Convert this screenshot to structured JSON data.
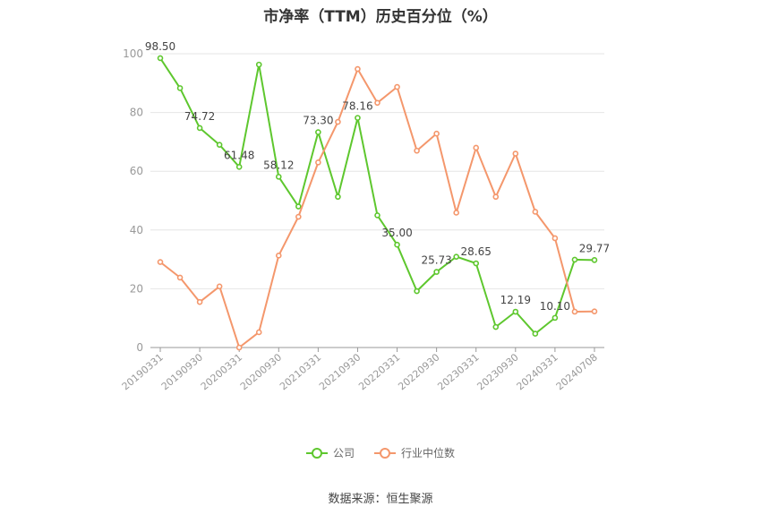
{
  "chart_data": {
    "type": "line",
    "title": "市净率（TTM）历史百分位（%）",
    "x": [
      "20190331",
      "20190630",
      "20190930",
      "20191231",
      "20200331",
      "20200630",
      "20200930",
      "20201231",
      "20210331",
      "20210630",
      "20210930",
      "20211231",
      "20220331",
      "20220630",
      "20220930",
      "20221231",
      "20230331",
      "20230630",
      "20230930",
      "20231231",
      "20240331",
      "20240630",
      "20240708"
    ],
    "x_tick_labels": [
      "20190331",
      "20190930",
      "20200331",
      "20200930",
      "20210331",
      "20210930",
      "20220331",
      "20220930",
      "20230331",
      "20230930",
      "20240331",
      "20240708"
    ],
    "ylim": [
      0,
      100
    ],
    "y_ticks": [
      0,
      20,
      40,
      60,
      80,
      100
    ],
    "grid": true,
    "series": [
      {
        "name": "公司",
        "color": "#5ec72e",
        "values": [
          98.5,
          88.3,
          74.72,
          69.0,
          61.48,
          96.3,
          58.12,
          48.0,
          73.3,
          51.3,
          78.16,
          45.0,
          35.0,
          19.2,
          25.73,
          30.9,
          28.65,
          7.0,
          12.19,
          4.7,
          10.1,
          29.9,
          29.77
        ]
      },
      {
        "name": "行业中位数",
        "color": "#f4976c",
        "values": [
          29.1,
          23.8,
          15.5,
          20.8,
          0.0,
          5.2,
          31.3,
          44.5,
          63.0,
          76.8,
          94.8,
          83.3,
          88.7,
          67.0,
          72.8,
          45.9,
          68.0,
          51.3,
          66.0,
          46.2,
          37.2,
          12.2,
          12.3
        ]
      }
    ],
    "data_labels": [
      {
        "series": 0,
        "index": 0,
        "text": "98.50"
      },
      {
        "series": 0,
        "index": 2,
        "text": "74.72"
      },
      {
        "series": 0,
        "index": 4,
        "text": "61.48"
      },
      {
        "series": 0,
        "index": 6,
        "text": "58.12"
      },
      {
        "series": 0,
        "index": 8,
        "text": "73.30"
      },
      {
        "series": 0,
        "index": 10,
        "text": "78.16"
      },
      {
        "series": 0,
        "index": 12,
        "text": "35.00"
      },
      {
        "series": 0,
        "index": 14,
        "text": "25.73"
      },
      {
        "series": 0,
        "index": 16,
        "text": "28.65"
      },
      {
        "series": 0,
        "index": 18,
        "text": "12.19"
      },
      {
        "series": 0,
        "index": 20,
        "text": "10.10"
      },
      {
        "series": 0,
        "index": 22,
        "text": "29.77"
      }
    ],
    "legend_position": "bottom"
  },
  "source_text": "数据来源：恒生聚源"
}
